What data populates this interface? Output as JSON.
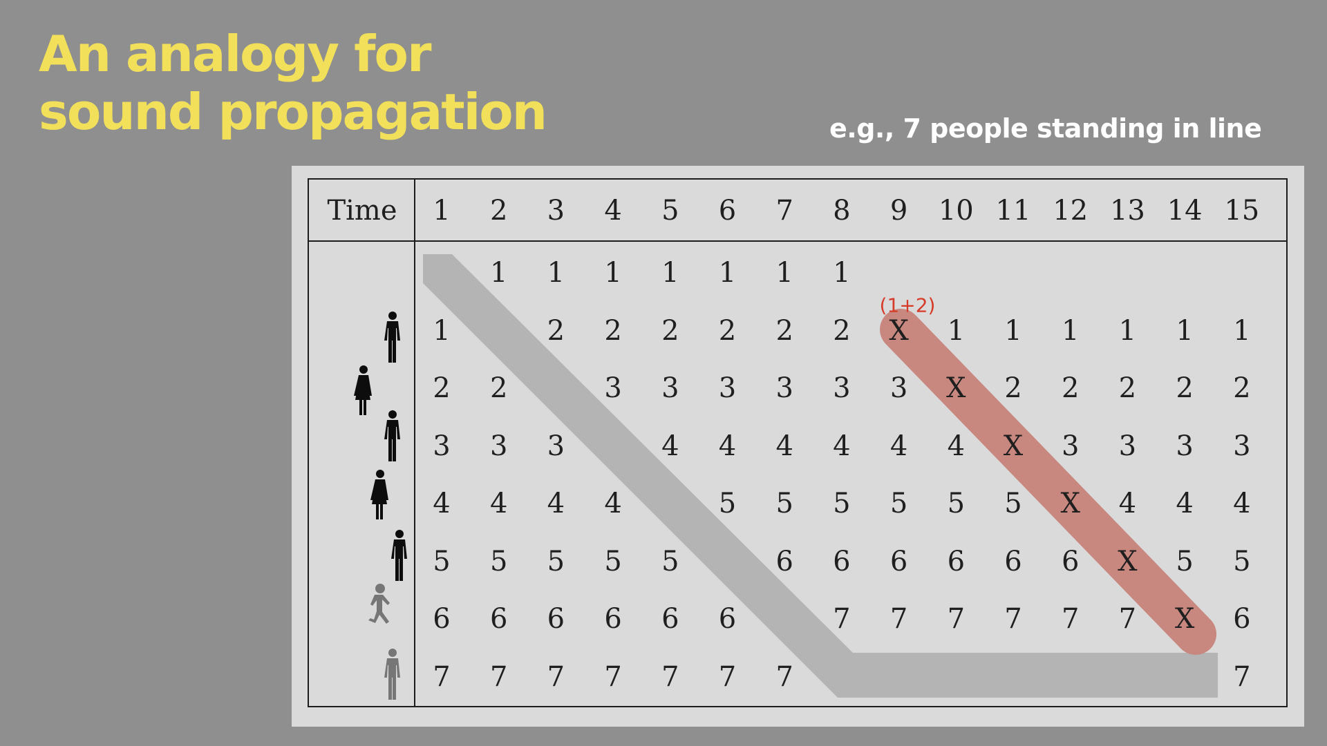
{
  "title_lines": [
    "An analogy for",
    "sound propagation"
  ],
  "subtitle": "e.g., 7 people standing in line",
  "table": {
    "time_label": "Time",
    "times": [
      "1",
      "2",
      "3",
      "4",
      "5",
      "6",
      "7",
      "8",
      "9",
      "10",
      "11",
      "12",
      "13",
      "14",
      "15"
    ],
    "rows": [
      [
        "",
        "1",
        "1",
        "1",
        "1",
        "1",
        "1",
        "1",
        "",
        "",
        "",
        "",
        "",
        "",
        ""
      ],
      [
        "1",
        "",
        "2",
        "2",
        "2",
        "2",
        "2",
        "2",
        "X",
        "1",
        "1",
        "1",
        "1",
        "1",
        "1"
      ],
      [
        "2",
        "2",
        "",
        "3",
        "3",
        "3",
        "3",
        "3",
        "3",
        "X",
        "2",
        "2",
        "2",
        "2",
        "2"
      ],
      [
        "3",
        "3",
        "3",
        "",
        "4",
        "4",
        "4",
        "4",
        "4",
        "4",
        "X",
        "3",
        "3",
        "3",
        "3"
      ],
      [
        "4",
        "4",
        "4",
        "4",
        "",
        "5",
        "5",
        "5",
        "5",
        "5",
        "5",
        "X",
        "4",
        "4",
        "4"
      ],
      [
        "5",
        "5",
        "5",
        "5",
        "5",
        "",
        "6",
        "6",
        "6",
        "6",
        "6",
        "6",
        "X",
        "5",
        "5"
      ],
      [
        "6",
        "6",
        "6",
        "6",
        "6",
        "6",
        "",
        "7",
        "7",
        "7",
        "7",
        "7",
        "7",
        "X",
        "6"
      ],
      [
        "7",
        "7",
        "7",
        "7",
        "7",
        "7",
        "7",
        "",
        "",
        "",
        "",
        "",
        "",
        "",
        "7"
      ]
    ],
    "collision_note": "(1+2)"
  },
  "people": [
    {
      "icon": "standing-man-icon",
      "color": "#0d0d0d"
    },
    {
      "icon": "standing-woman-icon",
      "color": "#0d0d0d"
    },
    {
      "icon": "standing-man-icon",
      "color": "#0d0d0d"
    },
    {
      "icon": "standing-woman-icon",
      "color": "#0d0d0d"
    },
    {
      "icon": "standing-man-icon",
      "color": "#0d0d0d"
    },
    {
      "icon": "running-boy-icon",
      "color": "#767676"
    },
    {
      "icon": "standing-man-icon",
      "color": "#767676"
    }
  ],
  "colors": {
    "background": "#8f8f8f",
    "title": "#f2e05a",
    "subtitle": "#ffffff",
    "panel": "#dadada",
    "gap_band": "#b4b4b4",
    "collision_band": "#c8877f",
    "collision_note": "#d63a28"
  }
}
